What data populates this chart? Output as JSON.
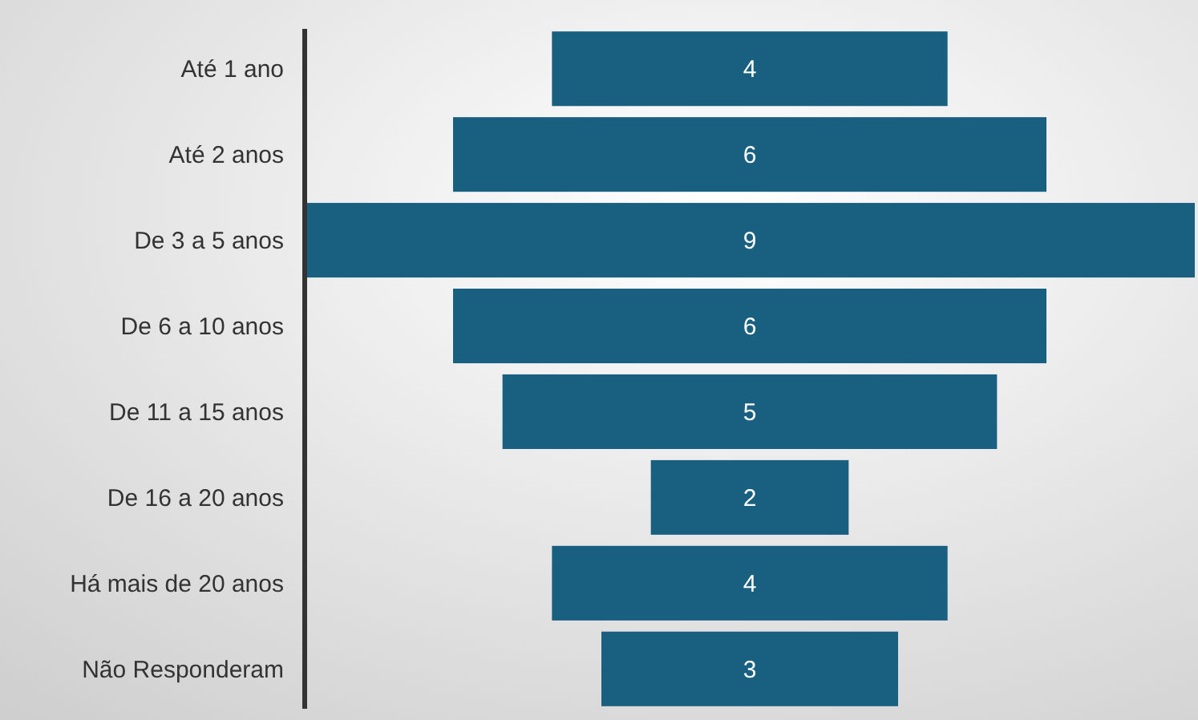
{
  "chart_data": {
    "type": "other",
    "categories": [
      "Até 1 ano",
      "Até 2 anos",
      "De 3 a 5 anos",
      "De 6 a 10 anos",
      "De 11 a 15 anos",
      "De 16 a 20 anos",
      "Há mais de 20 anos",
      "Não Responderam"
    ],
    "values": [
      4,
      6,
      9,
      6,
      5,
      2,
      4,
      3
    ],
    "color": "#195f80",
    "data_labels": true
  }
}
